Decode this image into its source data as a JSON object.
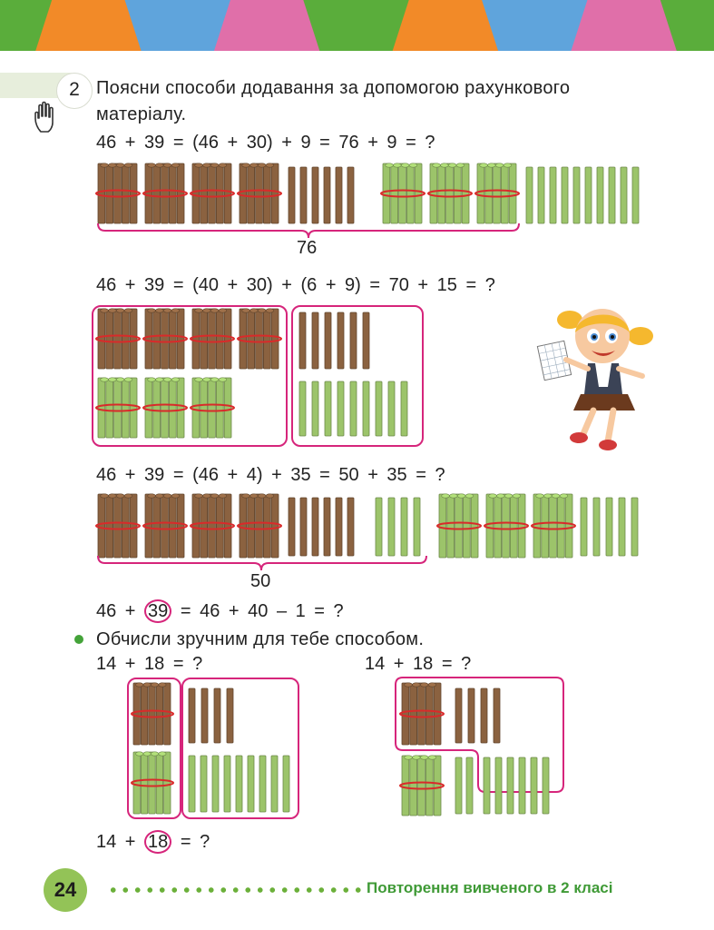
{
  "header": {
    "colors": [
      "#5aad3b",
      "#f28a28",
      "#5fa4dc",
      "#e06fa9",
      "#5aad3b",
      "#f28a28",
      "#5fa4dc",
      "#e06fa9",
      "#5aad3b"
    ]
  },
  "task": {
    "number": "2",
    "instruction_line1": "Поясни способи додавання за допомогою рахункового",
    "instruction_line2": "матеріалу."
  },
  "method1": {
    "equation": "46 + 39 = (46 + 30) + 9 = 76 + 9 = ?",
    "brace_label": "76"
  },
  "method2": {
    "equation": "46 + 39 = (40 + 30) + (6 + 9) = 70 + 15 = ?"
  },
  "method3": {
    "equation": "46 + 39 = (46 + 4) + 35 = 50 + 35 = ?",
    "brace_label": "50"
  },
  "method4": {
    "eq_before": "46 +",
    "circled": "39",
    "eq_after": "= 46 + 40 – 1 = ?"
  },
  "exercise": {
    "instruction": "Обчисли зручним для тебе способом.",
    "left_equation": "14 + 18 = ?",
    "right_equation": "14 + 18 = ?",
    "bottom_before": "14 +",
    "bottom_circled": "18",
    "bottom_after": "= ?"
  },
  "footer": {
    "page_number": "24",
    "section_title": "Повторення вивченого в 2 класі"
  },
  "colors": {
    "brown": "#8b6240",
    "green": "#9cc46a",
    "red_band": "#d92a2a",
    "frame": "#d6257b"
  }
}
